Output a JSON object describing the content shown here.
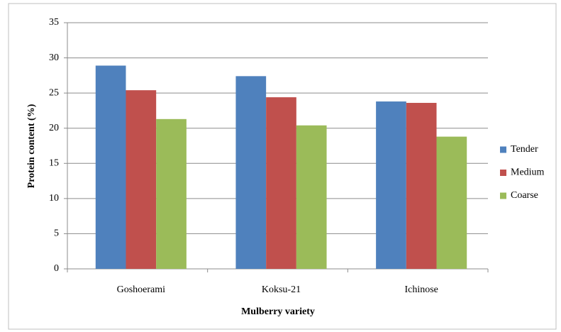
{
  "chart_data": {
    "type": "bar",
    "x_label": "Mulberry variety",
    "y_label": "Protein content (%)",
    "categories": [
      "Goshoerami",
      "Koksu-21",
      "Ichinose"
    ],
    "series": [
      {
        "name": "Tender",
        "color": "#4f81bd",
        "values": [
          28.9,
          27.4,
          23.8
        ]
      },
      {
        "name": "Medium",
        "color": "#c0504d",
        "values": [
          25.4,
          24.4,
          23.6
        ]
      },
      {
        "name": "Coarse",
        "color": "#9bbb59",
        "values": [
          21.3,
          20.4,
          18.8
        ]
      }
    ],
    "ylim": [
      0,
      35
    ],
    "yticks": [
      0,
      5,
      10,
      15,
      20,
      25,
      30,
      35
    ],
    "grid": true,
    "legend": "right"
  }
}
